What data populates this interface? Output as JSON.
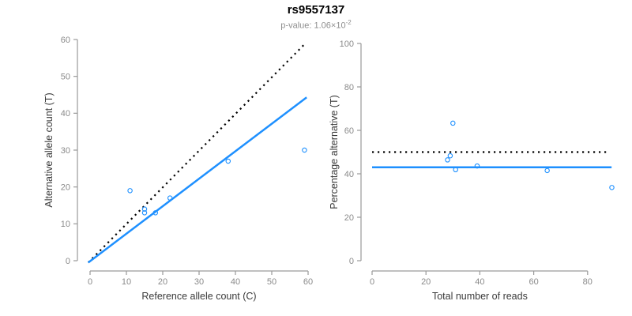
{
  "header": {
    "title": "rs9557137",
    "pvalue_text": "p-value: 1.06×10",
    "pvalue_exponent": "-2"
  },
  "colors": {
    "accent_blue": "#1E90FF",
    "dotted_black": "#000000",
    "axis_line": "#9a9a9a",
    "tick_label": "#8a8a8a",
    "axis_title": "#3a3a3a",
    "title": "#000000",
    "subtitle": "#8e8e8e",
    "background": "#ffffff"
  },
  "chart_data": [
    {
      "type": "scatter",
      "name": "allele-counts",
      "xlabel": "Reference allele count (C)",
      "ylabel": "Alternative allele count (T)",
      "xlim": [
        0,
        60
      ],
      "ylim": [
        0,
        60
      ],
      "xticks": [
        0,
        10,
        20,
        30,
        40,
        50,
        60
      ],
      "yticks": [
        0,
        10,
        20,
        30,
        40,
        50,
        60
      ],
      "grid": false,
      "points": [
        [
          11,
          19
        ],
        [
          15,
          13
        ],
        [
          15,
          14
        ],
        [
          18,
          13
        ],
        [
          22,
          17
        ],
        [
          38,
          27
        ],
        [
          59,
          30
        ]
      ],
      "lines": [
        {
          "name": "identity-line",
          "style": "dotted",
          "color": "#000000",
          "from": [
            -0.5,
            -0.5
          ],
          "to": [
            58.8,
            58.5
          ]
        },
        {
          "name": "fit-line",
          "style": "solid",
          "color": "#1E90FF",
          "from": [
            -0.5,
            -0.5
          ],
          "to": [
            59.6,
            44.3
          ]
        }
      ]
    },
    {
      "type": "scatter",
      "name": "percentage-alternative",
      "xlabel": "Total number of reads",
      "ylabel": "Percentage alternative (T)",
      "xlim": [
        0,
        92
      ],
      "ylim": [
        0,
        100
      ],
      "xticks": [
        0,
        20,
        40,
        60,
        80
      ],
      "yticks": [
        0,
        20,
        40,
        60,
        80,
        100
      ],
      "grid": false,
      "points": [
        [
          30,
          63.3
        ],
        [
          28,
          46.4
        ],
        [
          29,
          48.3
        ],
        [
          31,
          41.9
        ],
        [
          39,
          43.6
        ],
        [
          65,
          41.5
        ],
        [
          89,
          33.7
        ]
      ],
      "lines": [
        {
          "name": "expected-50pct-line",
          "style": "dotted",
          "color": "#000000",
          "y": 50,
          "x_range": [
            0,
            87
          ]
        },
        {
          "name": "observed-mean-line",
          "style": "solid",
          "color": "#1E90FF",
          "y": 43,
          "x_range": [
            0,
            88.9
          ]
        }
      ]
    }
  ]
}
